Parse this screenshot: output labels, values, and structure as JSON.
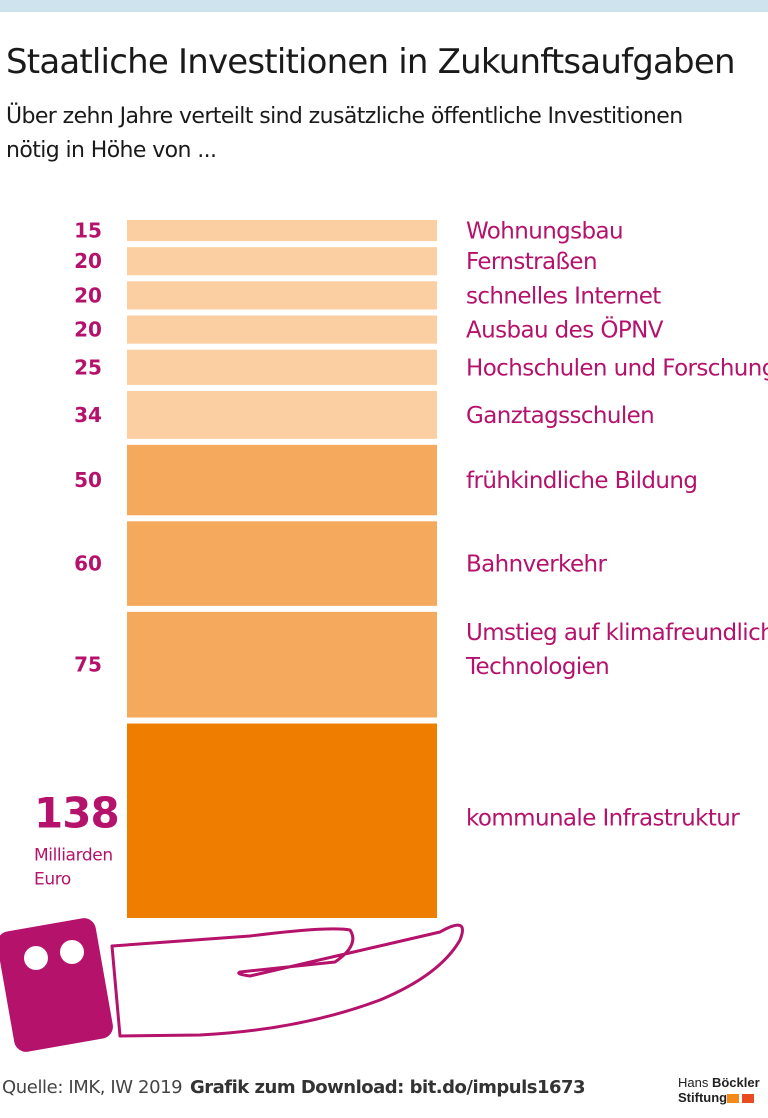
{
  "header": {
    "title": "Staatliche Investitionen in Zukunftsaufgaben",
    "subtitle": "Über zehn Jahre verteilt sind zusätzliche öffentliche Investitionen nötig in Höhe von ..."
  },
  "chart_data": {
    "type": "bar",
    "orientation": "stacked-vertical",
    "unit": "Milliarden Euro",
    "categories": [
      "Wohnungsbau",
      "Fernstraßen",
      "schnelles Internet",
      "Ausbau des ÖPNV",
      "Hochschulen und Forschung",
      "Ganztagsschulen",
      "frühkindliche Bildung",
      "Bahnverkehr",
      "Umstieg auf klimafreundliche Technologien",
      "kommunale Infrastruktur"
    ],
    "values": [
      15,
      20,
      20,
      20,
      25,
      34,
      50,
      60,
      75,
      138
    ],
    "value_labels": [
      "15",
      "20",
      "20",
      "20",
      "25",
      "34",
      "50",
      "60",
      "75",
      "138"
    ],
    "big_unit_lines": [
      "Milliarden",
      "Euro"
    ],
    "colors": {
      "light": "#fccfa3",
      "medium": "#f5a95c",
      "dark": "#ef7d00",
      "label": "#b5126b",
      "hand": "#b5126b"
    },
    "color_groups": [
      "light",
      "light",
      "light",
      "light",
      "light",
      "light",
      "medium",
      "medium",
      "medium",
      "dark"
    ]
  },
  "footer": {
    "source": "Quelle: IMK, IW 2019",
    "download": "Grafik zum Download: bit.do/impuls1673",
    "logo_line1_a": "Hans ",
    "logo_line1_b": "Böckler",
    "logo_line2": "Stiftung"
  }
}
